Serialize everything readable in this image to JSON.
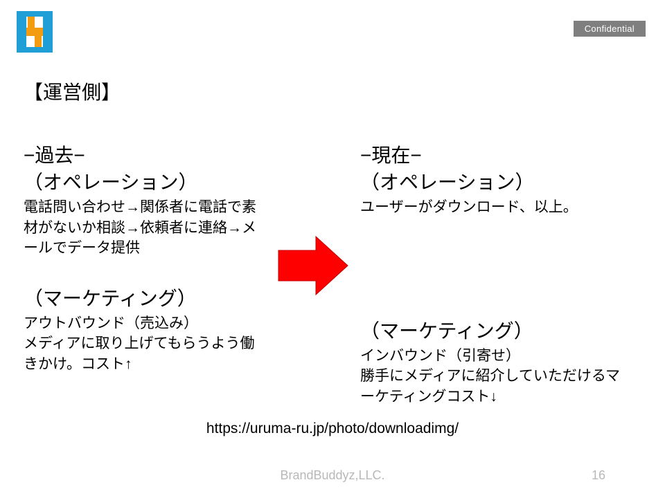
{
  "confidential_label": "Confidential",
  "title": "【運営側】",
  "left": {
    "era": "−過去−",
    "op_label": "（オペレーション）",
    "op_body": "電話問い合わせ→関係者に電話で素材がないか相談→依頼者に連絡→メールでデータ提供",
    "mkt_label": "（マーケティング）",
    "mkt_body": "アウトバウンド（売込み）\nメディアに取り上げてもらうよう働きかけ。コスト↑"
  },
  "right": {
    "era": "−現在−",
    "op_label": "（オペレーション）",
    "op_body": "ユーザーがダウンロード、以上。",
    "mkt_label": "（マーケティング）",
    "mkt_body": "インバウンド（引寄せ）\n勝手にメディアに紹介していただけるマーケティングコスト↓"
  },
  "url": "https://uruma-ru.jp/photo/downloadimg/",
  "footer_company": "BrandBuddyz,LLC.",
  "page_number": "16",
  "arrow_color": "#ff0000",
  "logo_colors": {
    "blue": "#1f9fd6",
    "orange": "#f39c12"
  }
}
